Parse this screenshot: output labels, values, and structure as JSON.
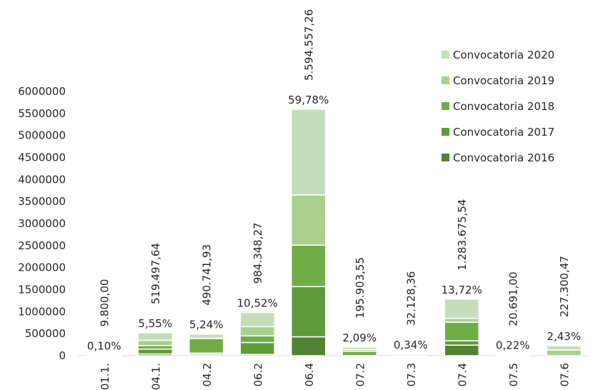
{
  "chart_data": {
    "type": "bar",
    "stacked": true,
    "categories": [
      "01.1.",
      "04.1.",
      "04.2",
      "06.2",
      "06.4",
      "07.2",
      "07.3",
      "07.4",
      "07.5",
      "07.6"
    ],
    "series": [
      {
        "name": "Convocatoria 2016",
        "color": "#548235",
        "values": [
          0,
          40000,
          30000,
          30000,
          430000,
          0,
          0,
          240000,
          0,
          0
        ]
      },
      {
        "name": "Convocatoria 2017",
        "color": "#5f9b3a",
        "values": [
          0,
          110000,
          30000,
          270000,
          1140000,
          0,
          0,
          100000,
          0,
          0
        ]
      },
      {
        "name": "Convocatoria 2018",
        "color": "#70ad47",
        "values": [
          0,
          80000,
          330000,
          150000,
          940000,
          100000,
          0,
          420000,
          0,
          0
        ]
      },
      {
        "name": "Convocatoria 2019",
        "color": "#a9d08e",
        "values": [
          0,
          120000,
          10000,
          210000,
          1140000,
          40000,
          0,
          90000,
          0,
          130000
        ]
      },
      {
        "name": "Convocatoria 2020",
        "color": "#c5ddb8",
        "values": [
          9800,
          169497.64,
          90741.93,
          324348.27,
          1944557.26,
          55903.55,
          32128.36,
          433675.54,
          20691,
          97300.47
        ]
      }
    ],
    "totals": [
      "9.800,00",
      "519.497,64",
      "490.741,93",
      "984.348,27",
      "5.594.557,26",
      "195.903,55",
      "32.128,36",
      "1.283.675,54",
      "20.691,00",
      "227.300,47"
    ],
    "percentages": [
      "0,10%",
      "5,55%",
      "5,24%",
      "10,52%",
      "59,78%",
      "2,09%",
      "0,34%",
      "13,72%",
      "0,22%",
      "2,43%"
    ],
    "y_ticks": [
      "0",
      "500000",
      "1000000",
      "1500000",
      "2000000",
      "2500000",
      "3000000",
      "3500000",
      "4000000",
      "4500000",
      "5000000",
      "5500000",
      "6000000"
    ],
    "ylim": [
      0,
      6000000
    ],
    "legend_position": "top-right",
    "legend_order": [
      "Convocatoria 2020",
      "Convocatoria 2019",
      "Convocatoria 2018",
      "Convocatoria 2017",
      "Convocatoria 2016"
    ],
    "grid": false
  }
}
